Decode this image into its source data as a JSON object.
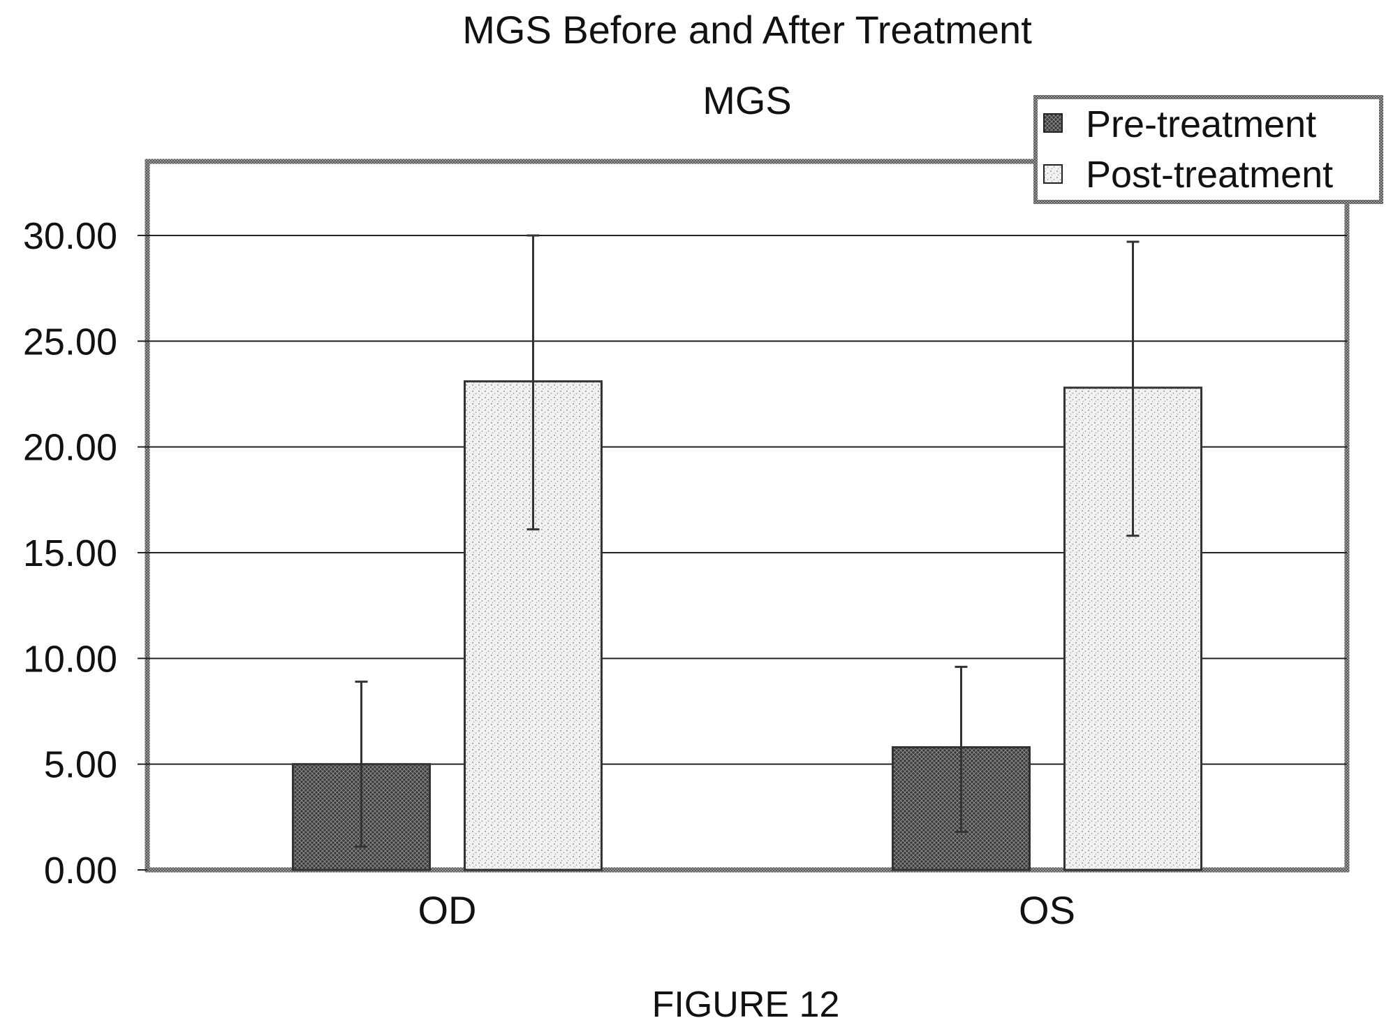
{
  "chart_data": {
    "type": "bar",
    "title": "MGS Before and After Treatment",
    "subtitle": "MGS",
    "caption": "FIGURE 12",
    "xlabel": "",
    "ylabel": "",
    "categories": [
      "OD",
      "OS"
    ],
    "ylim": [
      0,
      33.5
    ],
    "yticks": [
      "0.00",
      "5.00",
      "10.00",
      "15.00",
      "20.00",
      "25.00",
      "30.00"
    ],
    "grid": true,
    "legend_position": "top-right",
    "series": [
      {
        "name": "Pre-treatment",
        "values": [
          5.0,
          5.8
        ],
        "error_low": [
          1.1,
          1.8
        ],
        "error_high": [
          8.9,
          9.6
        ],
        "pattern": "dark-crosshatch"
      },
      {
        "name": "Post-treatment",
        "values": [
          23.1,
          22.8
        ],
        "error_low": [
          16.1,
          15.8
        ],
        "error_high": [
          30.0,
          29.7
        ],
        "pattern": "light-stipple"
      }
    ],
    "colors": {
      "pre": "#3a3a3a",
      "post": "#e6e6e6",
      "grid": "#222222",
      "frame": "#555555"
    }
  }
}
